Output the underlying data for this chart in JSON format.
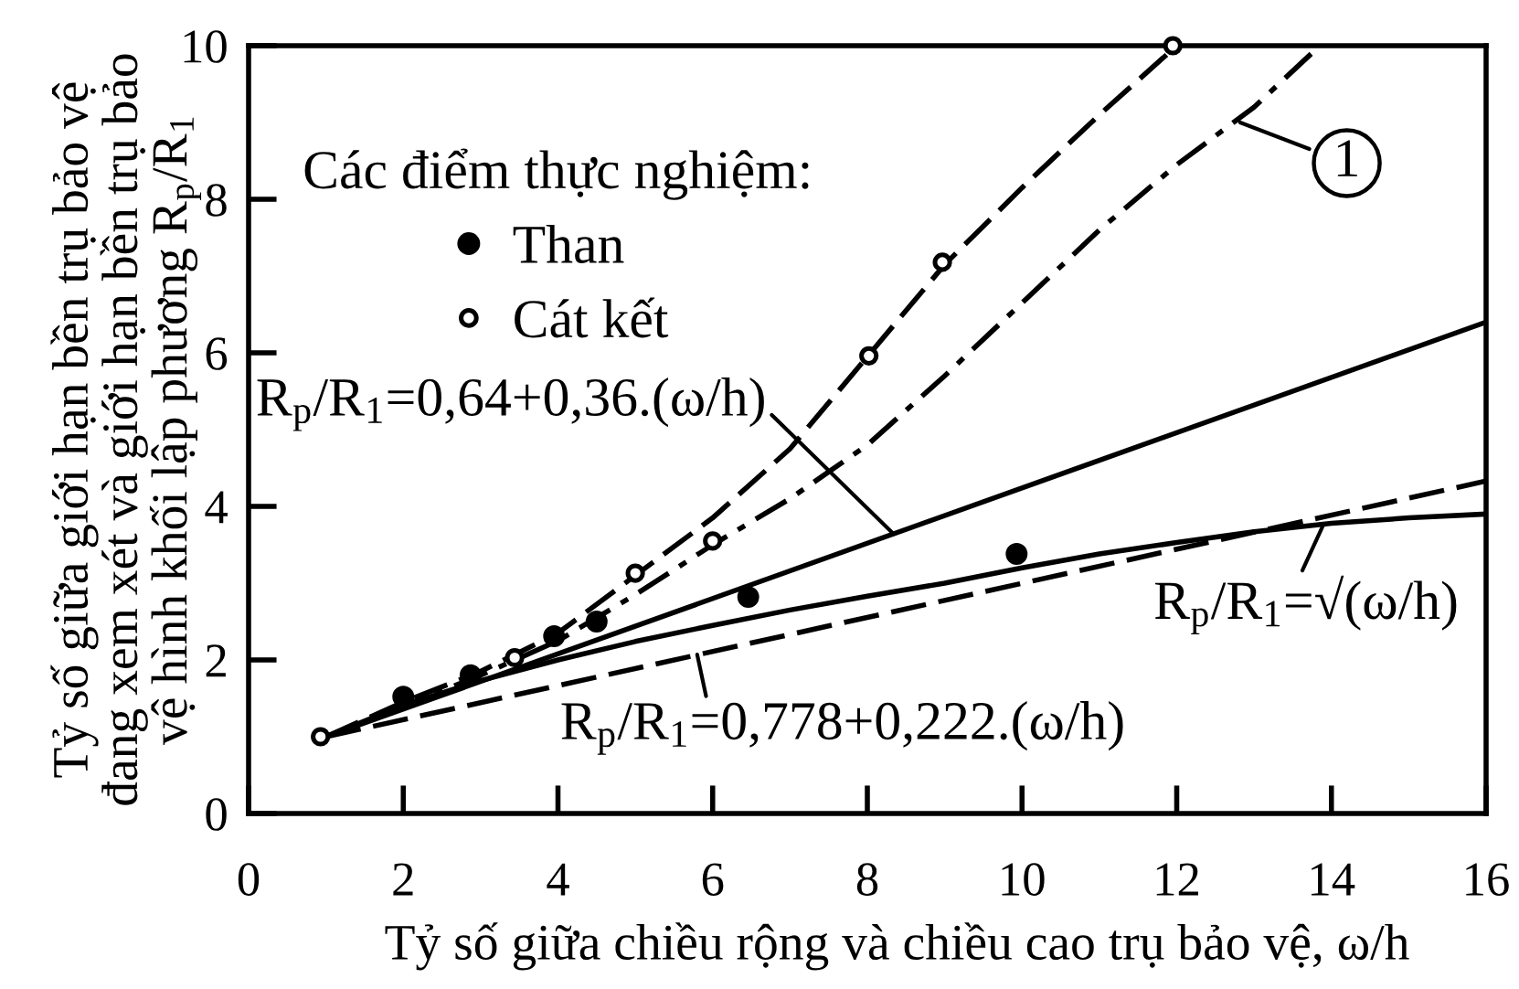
{
  "chart_data": {
    "type": "scatter",
    "xlabel": "Tỷ số giữa chiều rộng và chiều cao trụ bảo vệ, ω/h",
    "ylabel": "Tỷ số giữa giới hạn bền trụ bảo vệ\nđang xem xét và giới hạn bền trụ bảo\nvệ hình khối lập phương R$_{p}$/R$_{1}$",
    "legend_title": "Các điểm thực nghiệm:",
    "legend": "top left",
    "xlim": [
      0,
      16
    ],
    "xticks": [
      0,
      2,
      4,
      6,
      8,
      10,
      12,
      14,
      16
    ],
    "ylim": [
      0,
      10
    ],
    "yticks": [
      0,
      2,
      4,
      6,
      8,
      10
    ],
    "series": [
      {
        "type": "line",
        "color": "#000000",
        "line_style": "dashed",
        "x": [
          1,
          2,
          3,
          4,
          5,
          6,
          7,
          8,
          9,
          10,
          11,
          12
        ],
        "values": [
          1,
          1.45,
          1.85,
          2.35,
          3.1,
          3.85,
          4.75,
          5.95,
          7.15,
          8.15,
          9.1,
          10.0
        ]
      },
      {
        "type": "line",
        "color": "#000000",
        "line_style": "dashdot",
        "x": [
          1,
          2,
          3,
          4,
          5,
          6,
          7,
          8,
          9,
          10,
          11,
          12,
          13,
          13.85
        ],
        "values": [
          1,
          1.4,
          1.8,
          2.25,
          2.85,
          3.5,
          4.1,
          4.8,
          5.7,
          6.65,
          7.6,
          8.45,
          9.2,
          10.0
        ]
      },
      {
        "type": "line",
        "color": "#000000",
        "line_style": "solid",
        "x": [
          1,
          16
        ],
        "values": [
          1.0,
          6.4
        ]
      },
      {
        "type": "line",
        "color": "#000000",
        "line_style": "dashed",
        "x": [
          1,
          16
        ],
        "values": [
          1.0,
          4.33
        ]
      },
      {
        "type": "line",
        "color": "#000000",
        "line_style": "solid",
        "x": [
          1,
          2,
          3,
          4,
          5,
          6,
          7,
          8,
          9,
          10,
          11,
          12,
          13,
          14,
          15,
          16
        ],
        "values": [
          1,
          1.41,
          1.73,
          2.0,
          2.24,
          2.45,
          2.65,
          2.83,
          3.0,
          3.2,
          3.38,
          3.53,
          3.67,
          3.78,
          3.85,
          3.9
        ]
      },
      {
        "name": "Than",
        "color": "#000000",
        "marker": "circle",
        "x": [
          2.0,
          2.87,
          3.95,
          4.5,
          6.46,
          9.93
        ],
        "values": [
          1.52,
          1.8,
          2.31,
          2.5,
          2.82,
          3.38
        ]
      },
      {
        "name": "Cát kết",
        "color": "#ffffff",
        "marker": "circle",
        "x": [
          0.93,
          3.44,
          5.0,
          6.0,
          8.02,
          8.97,
          11.95
        ],
        "values": [
          1.0,
          2.03,
          3.13,
          3.55,
          5.96,
          7.18,
          10.0
        ]
      }
    ],
    "annotations": [
      {
        "text": "R$_{p}$/R$_{1}$=0,64+0,36.(ω/h)",
        "x": 8.34,
        "y": 3.64
      },
      {
        "text": "R$_{p}$/R$_{1}$=0,778+0,222.(ω/h)",
        "x": 5.8,
        "y": 2.07
      },
      {
        "text": "R$_{p}$/R$_{1}$=√(ω/h)",
        "x": 13.9,
        "y": 3.77
      },
      {
        "text": "1",
        "x": 12.82,
        "y": 9.0
      }
    ]
  }
}
